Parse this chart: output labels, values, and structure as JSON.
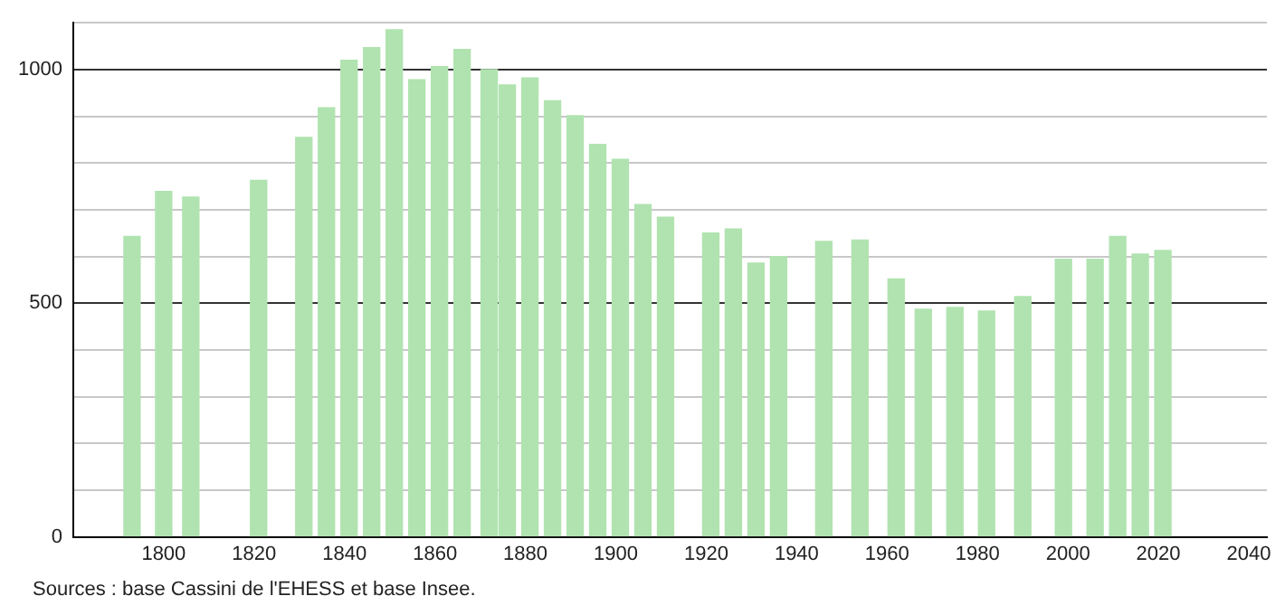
{
  "chart_data": {
    "type": "bar",
    "color": "#b0e3b0",
    "x": [
      1793,
      1800,
      1806,
      1821,
      1831,
      1836,
      1841,
      1846,
      1851,
      1856,
      1861,
      1866,
      1872,
      1876,
      1881,
      1886,
      1891,
      1896,
      1901,
      1906,
      1911,
      1921,
      1926,
      1931,
      1936,
      1946,
      1954,
      1962,
      1968,
      1975,
      1982,
      1990,
      1999,
      2006,
      2011,
      2016,
      2021
    ],
    "values": [
      643,
      739,
      727,
      763,
      855,
      918,
      1020,
      1047,
      1085,
      978,
      1006,
      1043,
      1000,
      967,
      982,
      933,
      901,
      840,
      808,
      711,
      684,
      650,
      659,
      586,
      600,
      632,
      635,
      552,
      487,
      491,
      483,
      514,
      594,
      594,
      643,
      605,
      613
    ],
    "xlim": [
      1780,
      2044
    ],
    "xticks": [
      1800,
      1820,
      1840,
      1860,
      1880,
      1900,
      1920,
      1940,
      1960,
      1980,
      2000,
      2020,
      2040
    ],
    "ylim": [
      0,
      1100
    ],
    "yticks": [
      0,
      {
        "value": 100,
        "label": null
      },
      {
        "value": 200,
        "label": null
      },
      {
        "value": 300,
        "label": null
      },
      {
        "value": 400,
        "label": null
      },
      500,
      {
        "value": 600,
        "label": null
      },
      {
        "value": 700,
        "label": null
      },
      {
        "value": 800,
        "label": null
      },
      {
        "value": 900,
        "label": null
      },
      1000,
      {
        "value": 1100,
        "label": null
      }
    ],
    "grid": "y",
    "annotations": [
      "Sources : base Cassini de l'EHESS et base Insee."
    ]
  }
}
